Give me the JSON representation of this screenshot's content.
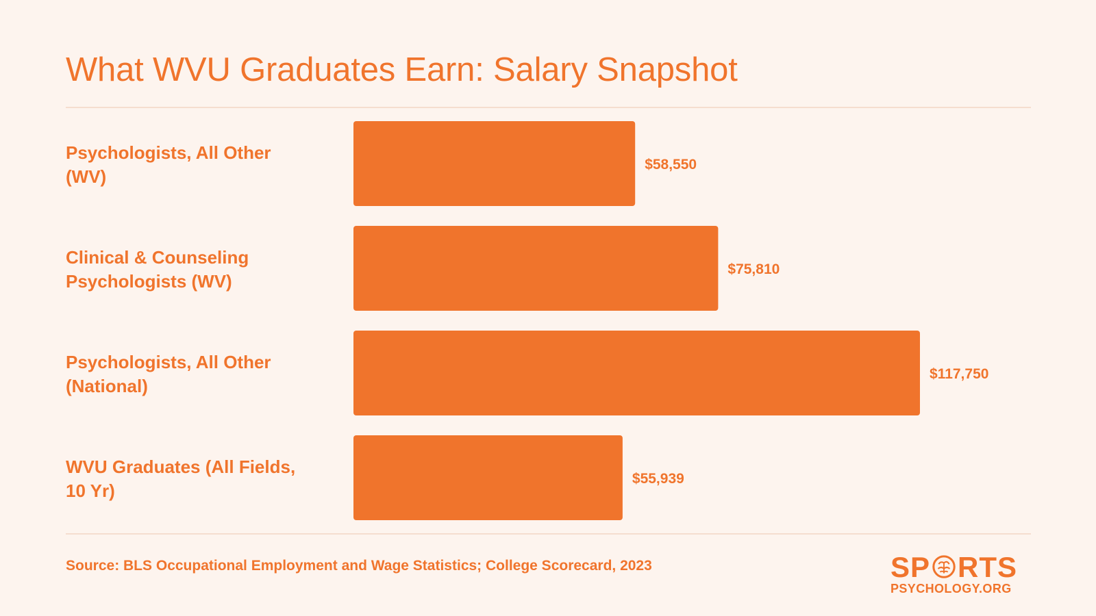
{
  "title": "What WVU Graduates Earn: Salary Snapshot",
  "source": "Source: BLS Occupational Employment and Wage Statistics; College Scorecard, 2023",
  "logo": {
    "top_left": "SP",
    "top_right": "RTS",
    "bottom": "PSYCHOLOGY.ORG",
    "icon": "brain-icon"
  },
  "colors": {
    "background": "#fdf4ee",
    "accent": "#f0742c",
    "bar": "#f0742c",
    "rule": "#f5ddcf"
  },
  "chart_data": {
    "type": "bar",
    "orientation": "horizontal",
    "categories": [
      [
        "Psychologists, All Other",
        "(WV)"
      ],
      [
        "Clinical & Counseling",
        "Psychologists (WV)"
      ],
      [
        "Psychologists, All Other",
        "(National)"
      ],
      [
        "WVU Graduates (All Fields,",
        "10 Yr)"
      ]
    ],
    "values": [
      58550,
      75810,
      117750,
      55939
    ],
    "value_labels": [
      "$58,550",
      "$75,810",
      "$117,750",
      "$55,939"
    ],
    "title": "What WVU Graduates Earn: Salary Snapshot",
    "xlabel": "",
    "ylabel": "",
    "grid": false,
    "legend": "none"
  }
}
